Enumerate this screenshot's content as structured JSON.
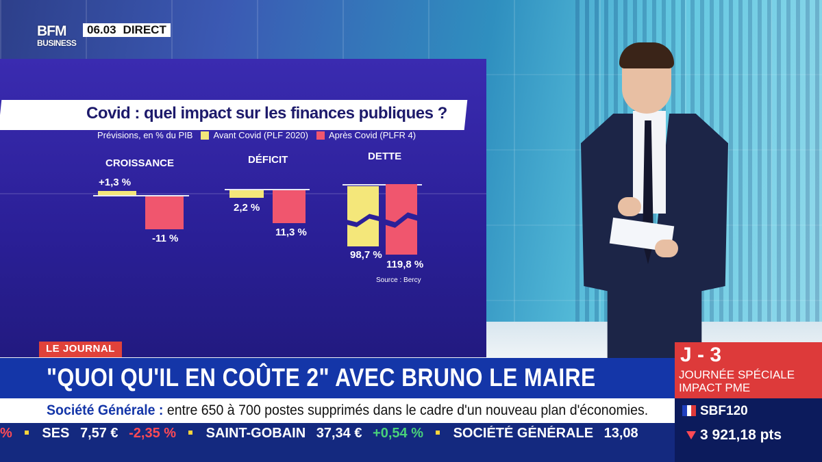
{
  "broadcast": {
    "logo_top": "BFM",
    "logo_bottom": "BUSINESS",
    "clock": "06.03",
    "live_label": "DIRECT"
  },
  "infographic": {
    "title": "Covid : quel impact sur les finances publiques ?",
    "legend_prefix": "Prévisions, en % du PIB",
    "legend_before": "Avant Covid (PLF 2020)",
    "legend_after": "Après Covid (PLFR 4)",
    "source": "Source : Bercy",
    "colors": {
      "before": "#f4e77a",
      "after": "#f0566e"
    },
    "groups": [
      {
        "label": "CROISSANCE",
        "before": "+1,3 %",
        "after": "-11 %"
      },
      {
        "label": "DÉFICIT",
        "before": "2,2 %",
        "after": "11,3 %"
      },
      {
        "label": "DETTE",
        "before": "98,7 %",
        "after": "119,8 %"
      }
    ]
  },
  "lower_third": {
    "tag": "LE JOURNAL",
    "headline": "\"QUOI QU'IL EN COÛTE 2\" AVEC BRUNO LE MAIRE",
    "news_company": "Société Générale :",
    "news_text": "entre 650 à 700 postes supprimés dans le cadre d'un nouveau plan d'économies."
  },
  "countdown": {
    "label": "J - 3",
    "line1": "JOURNÉE SPÉCIALE",
    "line2": "IMPACT PME"
  },
  "ticker": {
    "lead_fragment": "%",
    "items": [
      {
        "name": "SES",
        "price": "7,57 €",
        "change": "-2,35 %",
        "direction": "down"
      },
      {
        "name": "SAINT-GOBAIN",
        "price": "37,34 €",
        "change": "+0,54 %",
        "direction": "up"
      },
      {
        "name": "SOCIÉTÉ GÉNÉRALE",
        "price": "13,08",
        "change": "",
        "direction": ""
      }
    ]
  },
  "index": {
    "name": "SBF120",
    "value": "3 921,18 pts",
    "direction": "down"
  }
}
